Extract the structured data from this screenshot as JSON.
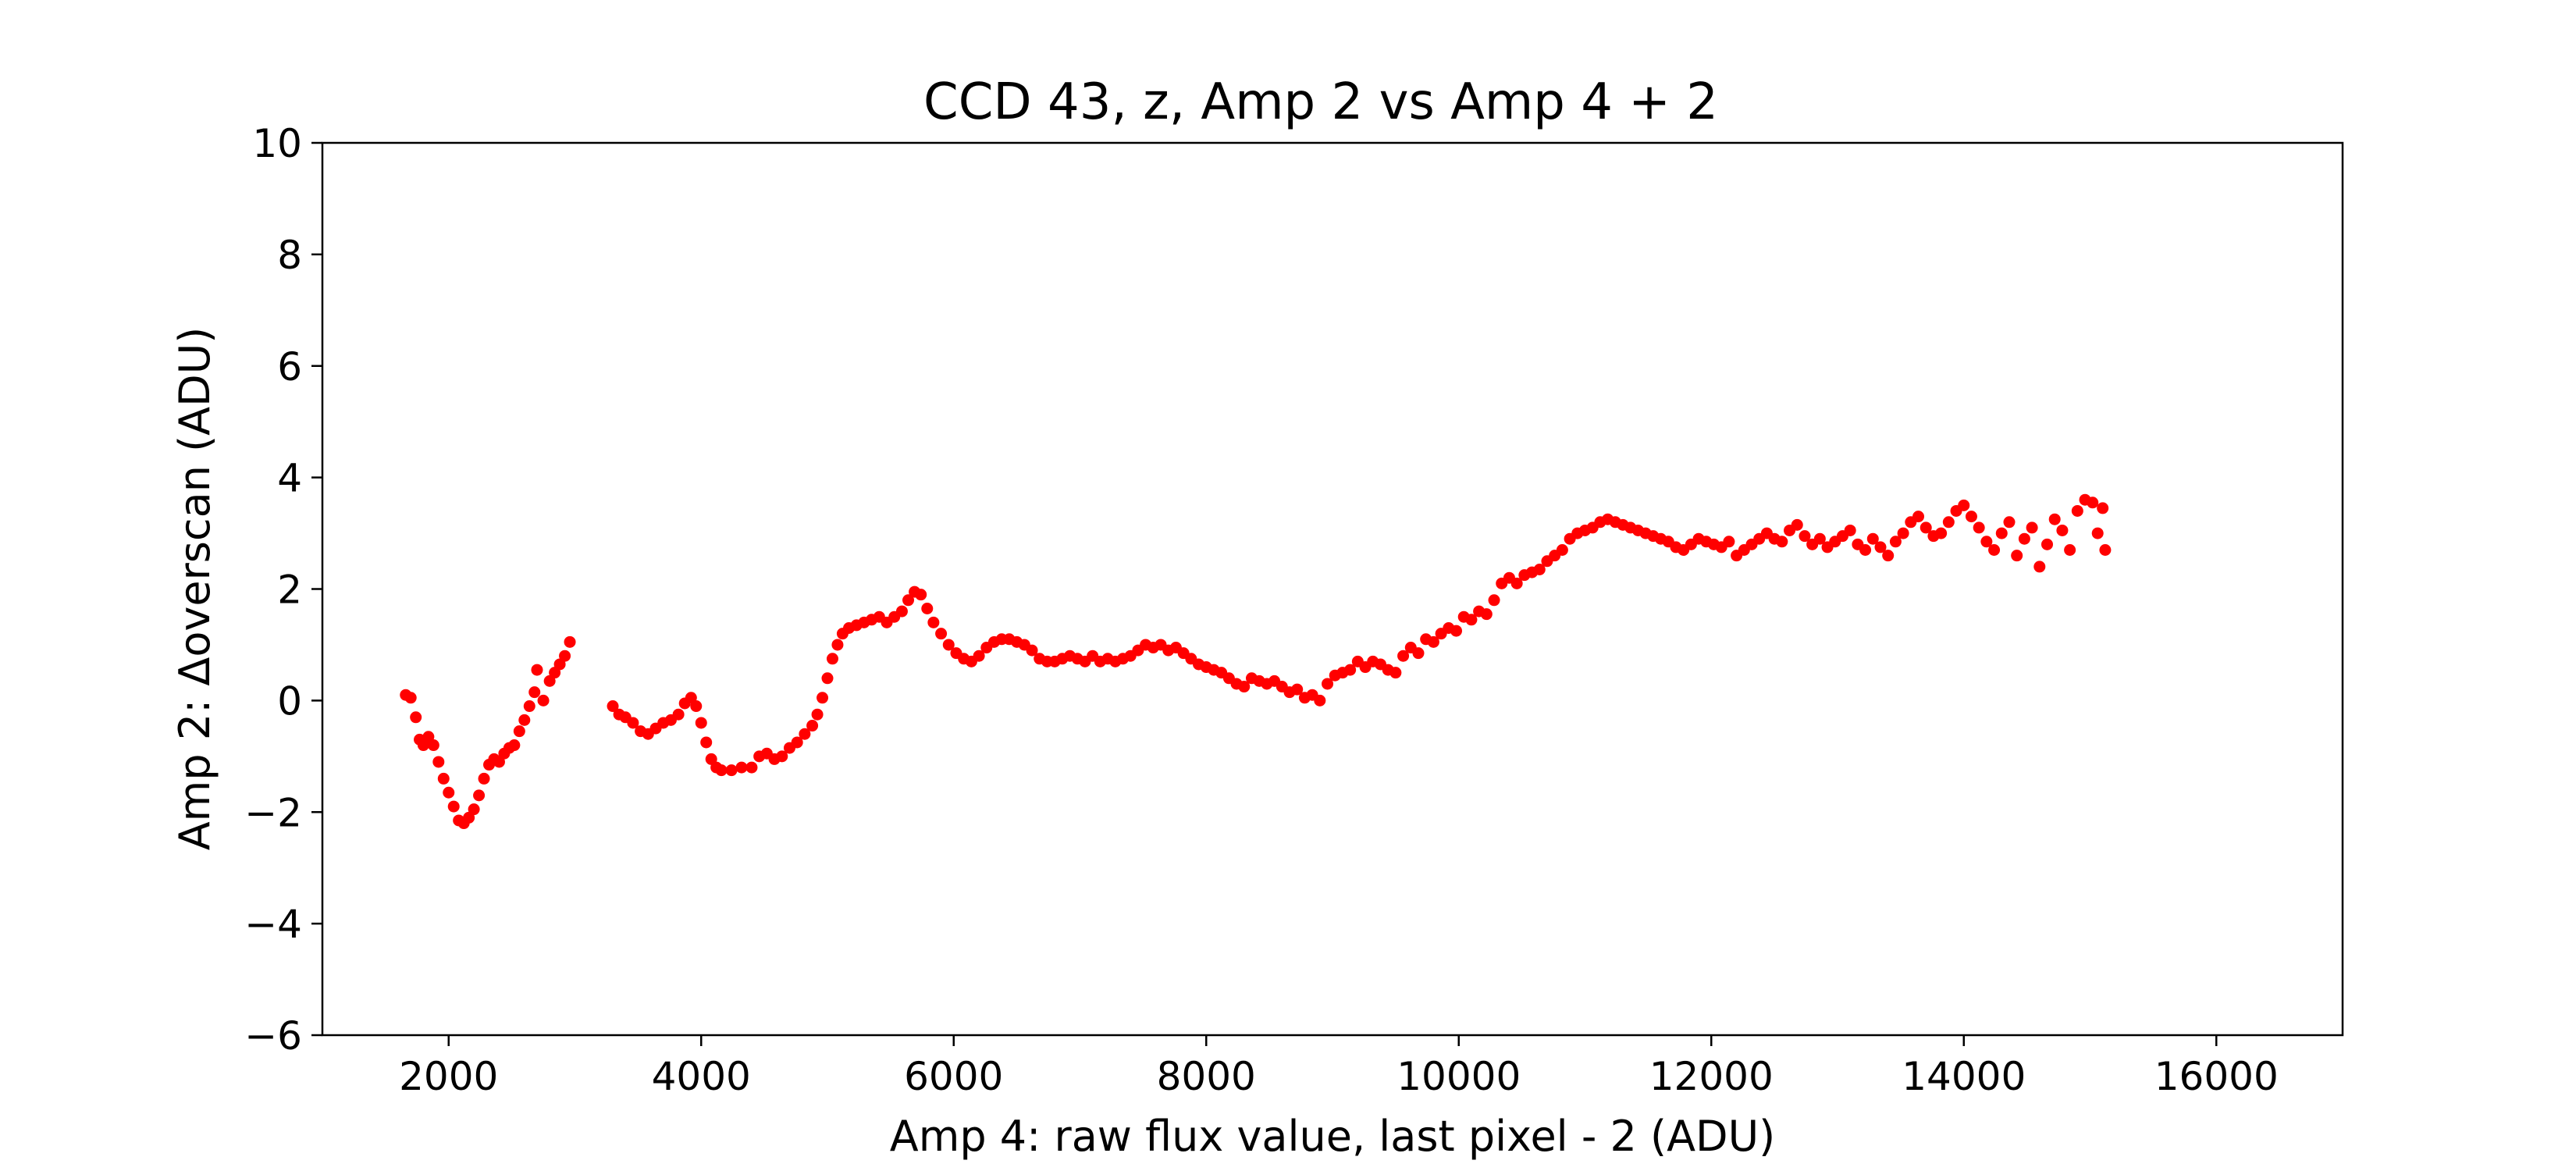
{
  "chart_data": {
    "type": "scatter",
    "title": "CCD 43, z, Amp 2 vs Amp 4 + 2",
    "xlabel": "Amp 4: raw flux value, last pixel - 2 (ADU)",
    "ylabel": "Amp 2: Δoverscan (ADU)",
    "xlim": [
      1000,
      17000
    ],
    "ylim": [
      -6,
      10
    ],
    "xticks": [
      2000,
      4000,
      6000,
      8000,
      10000,
      12000,
      14000,
      16000
    ],
    "yticks": [
      -6,
      -4,
      -2,
      0,
      2,
      4,
      6,
      8,
      10
    ],
    "xtick_labels": [
      "2000",
      "4000",
      "6000",
      "8000",
      "10000",
      "12000",
      "14000",
      "16000"
    ],
    "ytick_labels": [
      "−6",
      "−4",
      "−2",
      "0",
      "2",
      "4",
      "6",
      "8",
      "10"
    ],
    "grid": false,
    "legend": false,
    "series": [
      {
        "color": "#ff0000",
        "marker": "circle",
        "points": [
          [
            1660,
            0.1
          ],
          [
            1700,
            0.05
          ],
          [
            1740,
            -0.3
          ],
          [
            1770,
            -0.7
          ],
          [
            1800,
            -0.8
          ],
          [
            1840,
            -0.65
          ],
          [
            1880,
            -0.8
          ],
          [
            1920,
            -1.1
          ],
          [
            1960,
            -1.4
          ],
          [
            2000,
            -1.65
          ],
          [
            2040,
            -1.9
          ],
          [
            2080,
            -2.15
          ],
          [
            2120,
            -2.2
          ],
          [
            2160,
            -2.1
          ],
          [
            2200,
            -1.95
          ],
          [
            2240,
            -1.7
          ],
          [
            2280,
            -1.4
          ],
          [
            2320,
            -1.15
          ],
          [
            2360,
            -1.05
          ],
          [
            2400,
            -1.1
          ],
          [
            2440,
            -0.95
          ],
          [
            2480,
            -0.85
          ],
          [
            2520,
            -0.8
          ],
          [
            2560,
            -0.55
          ],
          [
            2600,
            -0.35
          ],
          [
            2640,
            -0.1
          ],
          [
            2680,
            0.15
          ],
          [
            2700,
            0.55
          ],
          [
            2750,
            0.0
          ],
          [
            2800,
            0.35
          ],
          [
            2840,
            0.5
          ],
          [
            2880,
            0.65
          ],
          [
            2920,
            0.8
          ],
          [
            2960,
            1.05
          ],
          [
            3300,
            -0.1
          ],
          [
            3350,
            -0.25
          ],
          [
            3400,
            -0.3
          ],
          [
            3460,
            -0.4
          ],
          [
            3520,
            -0.55
          ],
          [
            3580,
            -0.6
          ],
          [
            3640,
            -0.5
          ],
          [
            3700,
            -0.4
          ],
          [
            3760,
            -0.35
          ],
          [
            3820,
            -0.25
          ],
          [
            3870,
            -0.05
          ],
          [
            3920,
            0.05
          ],
          [
            3960,
            -0.1
          ],
          [
            4000,
            -0.4
          ],
          [
            4040,
            -0.75
          ],
          [
            4080,
            -1.05
          ],
          [
            4120,
            -1.2
          ],
          [
            4160,
            -1.25
          ],
          [
            4240,
            -1.25
          ],
          [
            4320,
            -1.2
          ],
          [
            4400,
            -1.2
          ],
          [
            4460,
            -1.0
          ],
          [
            4520,
            -0.95
          ],
          [
            4580,
            -1.05
          ],
          [
            4640,
            -1.0
          ],
          [
            4700,
            -0.85
          ],
          [
            4760,
            -0.75
          ],
          [
            4820,
            -0.6
          ],
          [
            4880,
            -0.45
          ],
          [
            4920,
            -0.25
          ],
          [
            4960,
            0.05
          ],
          [
            5000,
            0.4
          ],
          [
            5040,
            0.75
          ],
          [
            5080,
            1.0
          ],
          [
            5120,
            1.2
          ],
          [
            5170,
            1.3
          ],
          [
            5230,
            1.35
          ],
          [
            5290,
            1.4
          ],
          [
            5350,
            1.45
          ],
          [
            5410,
            1.5
          ],
          [
            5470,
            1.4
          ],
          [
            5530,
            1.5
          ],
          [
            5590,
            1.6
          ],
          [
            5640,
            1.8
          ],
          [
            5690,
            1.95
          ],
          [
            5740,
            1.9
          ],
          [
            5790,
            1.65
          ],
          [
            5840,
            1.4
          ],
          [
            5900,
            1.2
          ],
          [
            5960,
            1.0
          ],
          [
            6020,
            0.85
          ],
          [
            6080,
            0.75
          ],
          [
            6140,
            0.7
          ],
          [
            6200,
            0.8
          ],
          [
            6260,
            0.95
          ],
          [
            6320,
            1.05
          ],
          [
            6380,
            1.1
          ],
          [
            6440,
            1.1
          ],
          [
            6500,
            1.05
          ],
          [
            6560,
            1.0
          ],
          [
            6620,
            0.9
          ],
          [
            6680,
            0.75
          ],
          [
            6740,
            0.7
          ],
          [
            6800,
            0.7
          ],
          [
            6860,
            0.75
          ],
          [
            6920,
            0.8
          ],
          [
            6980,
            0.75
          ],
          [
            7040,
            0.7
          ],
          [
            7100,
            0.8
          ],
          [
            7160,
            0.7
          ],
          [
            7220,
            0.75
          ],
          [
            7280,
            0.7
          ],
          [
            7340,
            0.75
          ],
          [
            7400,
            0.8
          ],
          [
            7460,
            0.9
          ],
          [
            7520,
            1.0
          ],
          [
            7580,
            0.95
          ],
          [
            7640,
            1.0
          ],
          [
            7700,
            0.9
          ],
          [
            7760,
            0.95
          ],
          [
            7820,
            0.85
          ],
          [
            7880,
            0.75
          ],
          [
            7940,
            0.65
          ],
          [
            8000,
            0.6
          ],
          [
            8060,
            0.55
          ],
          [
            8120,
            0.5
          ],
          [
            8180,
            0.4
          ],
          [
            8240,
            0.3
          ],
          [
            8300,
            0.25
          ],
          [
            8360,
            0.4
          ],
          [
            8420,
            0.35
          ],
          [
            8480,
            0.3
          ],
          [
            8540,
            0.35
          ],
          [
            8600,
            0.25
          ],
          [
            8660,
            0.15
          ],
          [
            8720,
            0.2
          ],
          [
            8780,
            0.05
          ],
          [
            8840,
            0.1
          ],
          [
            8900,
            0.0
          ],
          [
            8960,
            0.3
          ],
          [
            9020,
            0.45
          ],
          [
            9080,
            0.5
          ],
          [
            9140,
            0.55
          ],
          [
            9200,
            0.7
          ],
          [
            9260,
            0.6
          ],
          [
            9320,
            0.7
          ],
          [
            9380,
            0.65
          ],
          [
            9440,
            0.55
          ],
          [
            9500,
            0.5
          ],
          [
            9560,
            0.8
          ],
          [
            9620,
            0.95
          ],
          [
            9680,
            0.85
          ],
          [
            9740,
            1.1
          ],
          [
            9800,
            1.05
          ],
          [
            9860,
            1.2
          ],
          [
            9920,
            1.3
          ],
          [
            9980,
            1.25
          ],
          [
            10040,
            1.5
          ],
          [
            10100,
            1.45
          ],
          [
            10160,
            1.6
          ],
          [
            10220,
            1.55
          ],
          [
            10280,
            1.8
          ],
          [
            10340,
            2.1
          ],
          [
            10400,
            2.2
          ],
          [
            10460,
            2.1
          ],
          [
            10520,
            2.25
          ],
          [
            10580,
            2.3
          ],
          [
            10640,
            2.35
          ],
          [
            10700,
            2.5
          ],
          [
            10760,
            2.6
          ],
          [
            10820,
            2.7
          ],
          [
            10880,
            2.9
          ],
          [
            10940,
            3.0
          ],
          [
            11000,
            3.05
          ],
          [
            11060,
            3.1
          ],
          [
            11120,
            3.2
          ],
          [
            11180,
            3.25
          ],
          [
            11240,
            3.2
          ],
          [
            11300,
            3.15
          ],
          [
            11360,
            3.1
          ],
          [
            11420,
            3.05
          ],
          [
            11480,
            3.0
          ],
          [
            11540,
            2.95
          ],
          [
            11600,
            2.9
          ],
          [
            11660,
            2.85
          ],
          [
            11720,
            2.75
          ],
          [
            11780,
            2.7
          ],
          [
            11840,
            2.8
          ],
          [
            11900,
            2.9
          ],
          [
            11960,
            2.85
          ],
          [
            12020,
            2.8
          ],
          [
            12080,
            2.75
          ],
          [
            12140,
            2.85
          ],
          [
            12200,
            2.6
          ],
          [
            12260,
            2.7
          ],
          [
            12320,
            2.8
          ],
          [
            12380,
            2.9
          ],
          [
            12440,
            3.0
          ],
          [
            12500,
            2.9
          ],
          [
            12560,
            2.85
          ],
          [
            12620,
            3.05
          ],
          [
            12680,
            3.15
          ],
          [
            12740,
            2.95
          ],
          [
            12800,
            2.8
          ],
          [
            12860,
            2.9
          ],
          [
            12920,
            2.75
          ],
          [
            12980,
            2.85
          ],
          [
            13040,
            2.95
          ],
          [
            13100,
            3.05
          ],
          [
            13160,
            2.8
          ],
          [
            13220,
            2.7
          ],
          [
            13280,
            2.9
          ],
          [
            13340,
            2.75
          ],
          [
            13400,
            2.6
          ],
          [
            13460,
            2.85
          ],
          [
            13520,
            3.0
          ],
          [
            13580,
            3.2
          ],
          [
            13640,
            3.3
          ],
          [
            13700,
            3.1
          ],
          [
            13760,
            2.95
          ],
          [
            13820,
            3.0
          ],
          [
            13880,
            3.2
          ],
          [
            13940,
            3.4
          ],
          [
            14000,
            3.5
          ],
          [
            14060,
            3.3
          ],
          [
            14120,
            3.1
          ],
          [
            14180,
            2.85
          ],
          [
            14240,
            2.7
          ],
          [
            14300,
            3.0
          ],
          [
            14360,
            3.2
          ],
          [
            14420,
            2.6
          ],
          [
            14480,
            2.9
          ],
          [
            14540,
            3.1
          ],
          [
            14600,
            2.4
          ],
          [
            14660,
            2.8
          ],
          [
            14720,
            3.25
          ],
          [
            14780,
            3.05
          ],
          [
            14840,
            2.7
          ],
          [
            14900,
            3.4
          ],
          [
            14960,
            3.6
          ],
          [
            15020,
            3.55
          ],
          [
            15060,
            3.0
          ],
          [
            15100,
            3.45
          ],
          [
            15120,
            2.7
          ]
        ]
      }
    ]
  }
}
